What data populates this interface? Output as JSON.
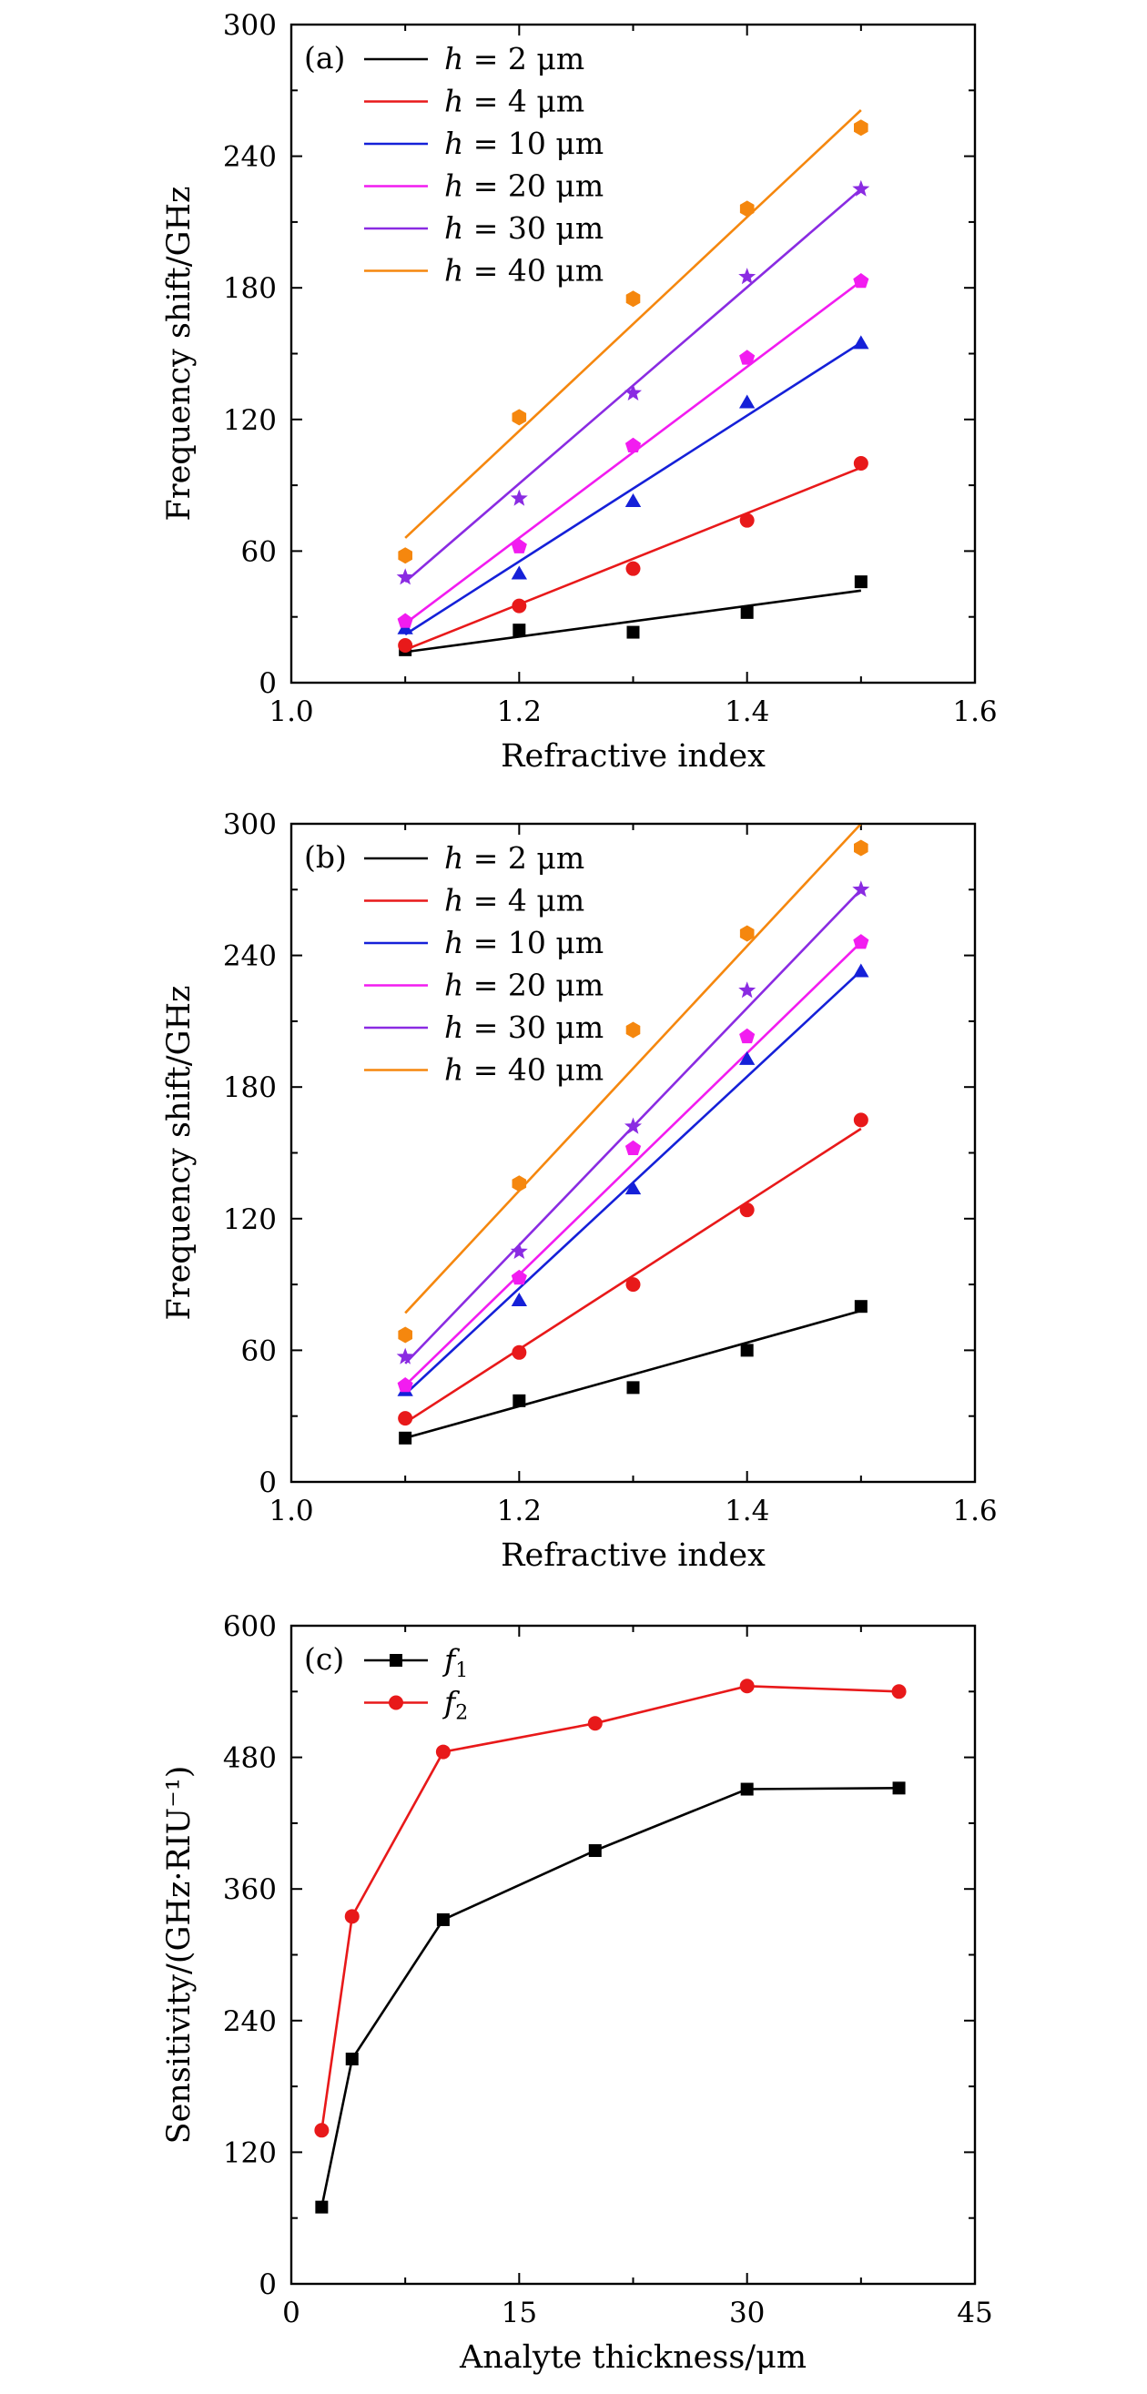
{
  "chart_data": [
    {
      "type": "scatter",
      "panel_label": "(a)",
      "xlabel": "Refractive index",
      "ylabel": "Frequency shift/GHz",
      "xlim": [
        1.0,
        1.6
      ],
      "ylim": [
        0,
        300
      ],
      "xticks": [
        1.0,
        1.2,
        1.4,
        1.6
      ],
      "xtick_labels": [
        "1.0",
        "1.2",
        "1.4",
        "1.6"
      ],
      "yticks": [
        0,
        60,
        120,
        180,
        240,
        300
      ],
      "ytick_labels": [
        "0",
        "60",
        "120",
        "180",
        "240",
        "300"
      ],
      "grid": false,
      "legend_position": "top-left",
      "x": [
        1.1,
        1.2,
        1.3,
        1.4,
        1.5
      ],
      "series": [
        {
          "name_var": "h",
          "name_rest": " = 2 μm",
          "color": "#000000",
          "marker": "square",
          "values": [
            15,
            24,
            23,
            32,
            46
          ],
          "fit": [
            14,
            42
          ]
        },
        {
          "name_var": "h",
          "name_rest": " = 4 μm",
          "color": "#e8191a",
          "marker": "circle",
          "values": [
            17,
            35,
            52,
            74,
            100
          ],
          "fit": [
            15,
            98
          ]
        },
        {
          "name_var": "h",
          "name_rest": " = 10 μm",
          "color": "#1520d8",
          "marker": "triangle",
          "values": [
            25,
            50,
            83,
            128,
            155
          ],
          "fit": [
            22,
            155
          ]
        },
        {
          "name_var": "h",
          "name_rest": " = 20 μm",
          "color": "#f21cf0",
          "marker": "pentagon",
          "values": [
            28,
            62,
            108,
            148,
            183
          ],
          "fit": [
            27,
            183
          ]
        },
        {
          "name_var": "h",
          "name_rest": " = 30 μm",
          "color": "#8a2be2",
          "marker": "star",
          "values": [
            48,
            84,
            132,
            185,
            225
          ],
          "fit": [
            46,
            225
          ]
        },
        {
          "name_var": "h",
          "name_rest": " = 40 μm",
          "color": "#f5870e",
          "marker": "hexagon",
          "values": [
            58,
            121,
            175,
            216,
            253
          ],
          "fit": [
            66,
            261
          ]
        }
      ]
    },
    {
      "type": "scatter",
      "panel_label": "(b)",
      "xlabel": "Refractive index",
      "ylabel": "Frequency shift/GHz",
      "xlim": [
        1.0,
        1.6
      ],
      "ylim": [
        0,
        300
      ],
      "xticks": [
        1.0,
        1.2,
        1.4,
        1.6
      ],
      "xtick_labels": [
        "1.0",
        "1.2",
        "1.4",
        "1.6"
      ],
      "yticks": [
        0,
        60,
        120,
        180,
        240,
        300
      ],
      "ytick_labels": [
        "0",
        "60",
        "120",
        "180",
        "240",
        "300"
      ],
      "grid": false,
      "legend_position": "top-left",
      "x": [
        1.1,
        1.2,
        1.3,
        1.4,
        1.5
      ],
      "series": [
        {
          "name_var": "h",
          "name_rest": " = 2 μm",
          "color": "#000000",
          "marker": "square",
          "values": [
            20,
            37,
            43,
            60,
            80
          ],
          "fit": [
            20,
            78
          ]
        },
        {
          "name_var": "h",
          "name_rest": " = 4 μm",
          "color": "#e8191a",
          "marker": "circle",
          "values": [
            29,
            59,
            90,
            124,
            165
          ],
          "fit": [
            27,
            161
          ]
        },
        {
          "name_var": "h",
          "name_rest": " = 10 μm",
          "color": "#1520d8",
          "marker": "triangle",
          "values": [
            42,
            83,
            134,
            193,
            233
          ],
          "fit": [
            40,
            233
          ]
        },
        {
          "name_var": "h",
          "name_rest": " = 20 μm",
          "color": "#f21cf0",
          "marker": "pentagon",
          "values": [
            44,
            93,
            152,
            203,
            246
          ],
          "fit": [
            44,
            246
          ]
        },
        {
          "name_var": "h",
          "name_rest": " = 30 μm",
          "color": "#8a2be2",
          "marker": "star",
          "values": [
            57,
            105,
            162,
            224,
            270
          ],
          "fit": [
            54,
            270
          ]
        },
        {
          "name_var": "h",
          "name_rest": " = 40 μm",
          "color": "#f5870e",
          "marker": "hexagon",
          "values": [
            67,
            136,
            206,
            250,
            289
          ],
          "fit": [
            77,
            300
          ]
        }
      ]
    },
    {
      "type": "line",
      "panel_label": "(c)",
      "xlabel": "Analyte thickness/μm",
      "ylabel": "Sensitivity/(GHz·RIU⁻¹)",
      "xlim": [
        0,
        45
      ],
      "ylim": [
        0,
        600
      ],
      "xticks": [
        0,
        15,
        30,
        45
      ],
      "xtick_labels": [
        "0",
        "15",
        "30",
        "45"
      ],
      "yticks": [
        0,
        120,
        240,
        360,
        480,
        600
      ],
      "ytick_labels": [
        "0",
        "120",
        "240",
        "360",
        "480",
        "600"
      ],
      "grid": false,
      "legend_position": "top-left",
      "x": [
        2,
        4,
        10,
        20,
        30,
        40
      ],
      "series": [
        {
          "name_var": "f",
          "name_sub": "1",
          "color": "#000000",
          "marker": "square",
          "values": [
            70,
            205,
            332,
            395,
            451,
            452
          ]
        },
        {
          "name_var": "f",
          "name_sub": "2",
          "color": "#e8191a",
          "marker": "circle",
          "values": [
            140,
            335,
            485,
            511,
            545,
            540
          ]
        }
      ]
    }
  ]
}
